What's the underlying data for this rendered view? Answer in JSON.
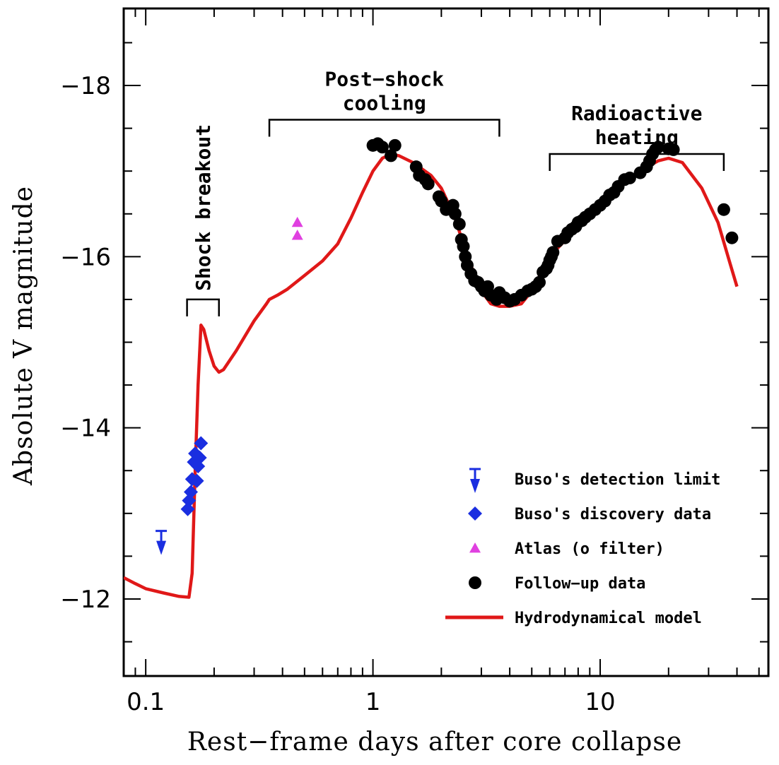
{
  "chart_data": {
    "type": "scatter",
    "xlabel": "Rest−frame days after core collapse",
    "ylabel": "Absolute V magnitude",
    "x_scale": "log",
    "xlim": [
      0.08,
      55
    ],
    "ylim": [
      -11.1,
      -18.9
    ],
    "x_ticks": [
      {
        "value": 0.1,
        "label": "0.1"
      },
      {
        "value": 1,
        "label": "1"
      },
      {
        "value": 10,
        "label": "10"
      }
    ],
    "y_ticks": [
      {
        "value": -12,
        "label": "−12"
      },
      {
        "value": -14,
        "label": "−14"
      },
      {
        "value": -16,
        "label": "−16"
      },
      {
        "value": -18,
        "label": "−18"
      }
    ],
    "annotations": [
      {
        "id": "shock-breakout",
        "lines": [
          "Shock breakout"
        ],
        "x_range": [
          0.152,
          0.21
        ],
        "y": -15.5,
        "orientation": "vertical"
      },
      {
        "id": "post-shock-cooling",
        "lines": [
          "Post−shock",
          "cooling"
        ],
        "x_range": [
          0.35,
          3.6
        ],
        "y": -17.6
      },
      {
        "id": "radioactive-heating",
        "lines": [
          "Radioactive",
          "heating"
        ],
        "x_range": [
          6.0,
          35.0
        ],
        "y": -17.2
      }
    ],
    "legend": {
      "position": "bottom-right",
      "entries": [
        {
          "label": "Buso's detection limit",
          "marker": "limit-arrow",
          "color": "#1a2ee0"
        },
        {
          "label": "Buso's discovery data",
          "marker": "diamond",
          "color": "#1a2ee0"
        },
        {
          "label": "Atlas (o filter)",
          "marker": "triangle",
          "color": "#e040e0"
        },
        {
          "label": "Follow−up data",
          "marker": "circle",
          "color": "#000000"
        },
        {
          "label": "Hydrodynamical model",
          "marker": "line",
          "color": "#e01818"
        }
      ]
    },
    "series": [
      {
        "name": "Buso's detection limit",
        "marker": "limit-arrow",
        "color": "#1a2ee0",
        "points": [
          {
            "x": 0.117,
            "y": -12.68
          }
        ]
      },
      {
        "name": "Buso's discovery data",
        "marker": "diamond",
        "color": "#1a2ee0",
        "points": [
          {
            "x": 0.153,
            "y": -13.05
          },
          {
            "x": 0.155,
            "y": -13.15
          },
          {
            "x": 0.158,
            "y": -13.25
          },
          {
            "x": 0.16,
            "y": -13.4
          },
          {
            "x": 0.163,
            "y": -13.6
          },
          {
            "x": 0.165,
            "y": -13.7
          },
          {
            "x": 0.168,
            "y": -13.38
          },
          {
            "x": 0.17,
            "y": -13.55
          },
          {
            "x": 0.173,
            "y": -13.65
          },
          {
            "x": 0.175,
            "y": -13.82
          }
        ]
      },
      {
        "name": "Atlas (o filter)",
        "marker": "triangle",
        "color": "#e040e0",
        "points": [
          {
            "x": 0.465,
            "y": -16.4
          },
          {
            "x": 0.465,
            "y": -16.25
          }
        ]
      },
      {
        "name": "Follow−up data",
        "marker": "circle",
        "color": "#000000",
        "points": [
          {
            "x": 1.0,
            "y": -17.3
          },
          {
            "x": 1.05,
            "y": -17.32
          },
          {
            "x": 1.1,
            "y": -17.28
          },
          {
            "x": 1.2,
            "y": -17.18
          },
          {
            "x": 1.25,
            "y": -17.3
          },
          {
            "x": 1.55,
            "y": -17.05
          },
          {
            "x": 1.6,
            "y": -16.95
          },
          {
            "x": 1.7,
            "y": -16.9
          },
          {
            "x": 1.75,
            "y": -16.85
          },
          {
            "x": 1.95,
            "y": -16.7
          },
          {
            "x": 2.0,
            "y": -16.65
          },
          {
            "x": 2.1,
            "y": -16.55
          },
          {
            "x": 2.25,
            "y": -16.6
          },
          {
            "x": 2.3,
            "y": -16.5
          },
          {
            "x": 2.4,
            "y": -16.38
          },
          {
            "x": 2.45,
            "y": -16.2
          },
          {
            "x": 2.5,
            "y": -16.12
          },
          {
            "x": 2.55,
            "y": -16.0
          },
          {
            "x": 2.6,
            "y": -15.9
          },
          {
            "x": 2.7,
            "y": -15.8
          },
          {
            "x": 2.8,
            "y": -15.72
          },
          {
            "x": 2.9,
            "y": -15.7
          },
          {
            "x": 3.0,
            "y": -15.65
          },
          {
            "x": 3.1,
            "y": -15.6
          },
          {
            "x": 3.2,
            "y": -15.65
          },
          {
            "x": 3.3,
            "y": -15.55
          },
          {
            "x": 3.5,
            "y": -15.5
          },
          {
            "x": 3.6,
            "y": -15.58
          },
          {
            "x": 3.8,
            "y": -15.52
          },
          {
            "x": 4.0,
            "y": -15.48
          },
          {
            "x": 4.2,
            "y": -15.5
          },
          {
            "x": 4.5,
            "y": -15.55
          },
          {
            "x": 4.8,
            "y": -15.6
          },
          {
            "x": 5.0,
            "y": -15.62
          },
          {
            "x": 5.2,
            "y": -15.65
          },
          {
            "x": 5.4,
            "y": -15.7
          },
          {
            "x": 5.6,
            "y": -15.82
          },
          {
            "x": 5.8,
            "y": -15.86
          },
          {
            "x": 5.9,
            "y": -15.9
          },
          {
            "x": 6.0,
            "y": -15.96
          },
          {
            "x": 6.1,
            "y": -16.0
          },
          {
            "x": 6.2,
            "y": -16.05
          },
          {
            "x": 6.5,
            "y": -16.18
          },
          {
            "x": 7.0,
            "y": -16.22
          },
          {
            "x": 7.2,
            "y": -16.28
          },
          {
            "x": 7.5,
            "y": -16.32
          },
          {
            "x": 7.8,
            "y": -16.35
          },
          {
            "x": 8.0,
            "y": -16.4
          },
          {
            "x": 8.3,
            "y": -16.42
          },
          {
            "x": 8.6,
            "y": -16.46
          },
          {
            "x": 9.0,
            "y": -16.5
          },
          {
            "x": 9.5,
            "y": -16.55
          },
          {
            "x": 10.0,
            "y": -16.6
          },
          {
            "x": 10.5,
            "y": -16.65
          },
          {
            "x": 11.0,
            "y": -16.72
          },
          {
            "x": 11.5,
            "y": -16.75
          },
          {
            "x": 12.0,
            "y": -16.82
          },
          {
            "x": 12.8,
            "y": -16.9
          },
          {
            "x": 13.5,
            "y": -16.92
          },
          {
            "x": 15.0,
            "y": -16.98
          },
          {
            "x": 16.0,
            "y": -17.05
          },
          {
            "x": 16.5,
            "y": -17.12
          },
          {
            "x": 17.0,
            "y": -17.2
          },
          {
            "x": 17.5,
            "y": -17.25
          },
          {
            "x": 18.0,
            "y": -17.28
          },
          {
            "x": 20.0,
            "y": -17.26
          },
          {
            "x": 21.0,
            "y": -17.25
          },
          {
            "x": 35.0,
            "y": -16.55
          },
          {
            "x": 38.0,
            "y": -16.22
          }
        ]
      },
      {
        "name": "Hydrodynamical model",
        "marker": "line",
        "color": "#e01818",
        "points": [
          {
            "x": 0.08,
            "y": -12.25
          },
          {
            "x": 0.09,
            "y": -12.18
          },
          {
            "x": 0.1,
            "y": -12.12
          },
          {
            "x": 0.12,
            "y": -12.07
          },
          {
            "x": 0.14,
            "y": -12.03
          },
          {
            "x": 0.155,
            "y": -12.02
          },
          {
            "x": 0.16,
            "y": -12.3
          },
          {
            "x": 0.165,
            "y": -13.5
          },
          {
            "x": 0.17,
            "y": -14.5
          },
          {
            "x": 0.175,
            "y": -15.2
          },
          {
            "x": 0.18,
            "y": -15.15
          },
          {
            "x": 0.19,
            "y": -14.9
          },
          {
            "x": 0.2,
            "y": -14.72
          },
          {
            "x": 0.21,
            "y": -14.65
          },
          {
            "x": 0.22,
            "y": -14.68
          },
          {
            "x": 0.25,
            "y": -14.9
          },
          {
            "x": 0.3,
            "y": -15.25
          },
          {
            "x": 0.34,
            "y": -15.45
          },
          {
            "x": 0.35,
            "y": -15.5
          },
          {
            "x": 0.38,
            "y": -15.55
          },
          {
            "x": 0.42,
            "y": -15.62
          },
          {
            "x": 0.5,
            "y": -15.78
          },
          {
            "x": 0.6,
            "y": -15.95
          },
          {
            "x": 0.7,
            "y": -16.15
          },
          {
            "x": 0.8,
            "y": -16.45
          },
          {
            "x": 0.9,
            "y": -16.75
          },
          {
            "x": 1.0,
            "y": -17.0
          },
          {
            "x": 1.1,
            "y": -17.15
          },
          {
            "x": 1.2,
            "y": -17.2
          },
          {
            "x": 1.3,
            "y": -17.18
          },
          {
            "x": 1.5,
            "y": -17.1
          },
          {
            "x": 1.8,
            "y": -16.95
          },
          {
            "x": 2.0,
            "y": -16.8
          },
          {
            "x": 2.3,
            "y": -16.45
          },
          {
            "x": 2.6,
            "y": -16.0
          },
          {
            "x": 3.0,
            "y": -15.6
          },
          {
            "x": 3.3,
            "y": -15.45
          },
          {
            "x": 3.6,
            "y": -15.42
          },
          {
            "x": 4.0,
            "y": -15.42
          },
          {
            "x": 4.5,
            "y": -15.45
          },
          {
            "x": 5.0,
            "y": -15.6
          },
          {
            "x": 5.6,
            "y": -15.85
          },
          {
            "x": 6.5,
            "y": -16.1
          },
          {
            "x": 8.0,
            "y": -16.35
          },
          {
            "x": 10.0,
            "y": -16.6
          },
          {
            "x": 12.0,
            "y": -16.8
          },
          {
            "x": 15.0,
            "y": -17.0
          },
          {
            "x": 18.0,
            "y": -17.12
          },
          {
            "x": 20.0,
            "y": -17.15
          },
          {
            "x": 23.0,
            "y": -17.1
          },
          {
            "x": 28.0,
            "y": -16.8
          },
          {
            "x": 33.0,
            "y": -16.4
          },
          {
            "x": 37.0,
            "y": -15.95
          },
          {
            "x": 40.0,
            "y": -15.65
          }
        ]
      }
    ]
  }
}
